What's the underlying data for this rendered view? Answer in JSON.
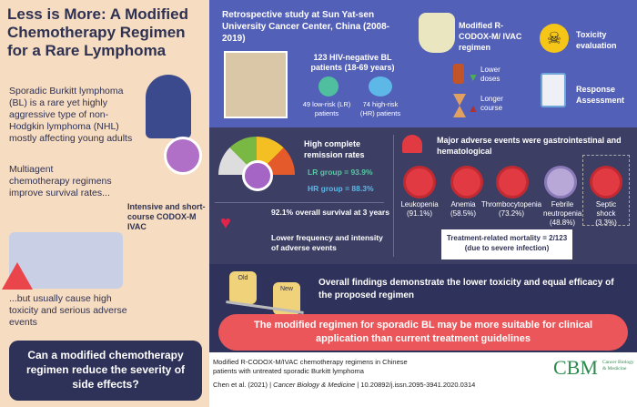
{
  "left": {
    "title": "Less is More: A Modified Chemotherapy Regimen for a Rare Lymphoma",
    "intro": "Sporadic Burkitt lymphoma (BL) is a rare yet highly aggressive type of non-Hodgkin lymphoma (NHL) mostly affecting young adults",
    "multiagent": "Multiagent chemotherapy regimens improve survival rates...",
    "regimen_label": "Intensive and short-course CODOX-M IVAC",
    "but": "...but usually cause high toxicity and serious adverse events",
    "question": "Can a modified chemotherapy regimen reduce the severity of side effects?"
  },
  "top": {
    "study": "Retrospective study at Sun Yat-sen University Cancer Center, China (2008-2019)",
    "patients": "123 HIV-negative BL patients (18-69 years)",
    "low_risk": "49 low-risk (LR) patients",
    "high_risk": "74 high-risk (HR) patients",
    "regimen": "Modified R-CODOX-M/ IVAC regimen",
    "lower_doses": "Lower doses",
    "longer_course": "Longer course",
    "toxicity": "Toxicity evaluation",
    "response": "Response Assessment"
  },
  "mid": {
    "remission_title": "High complete remission rates",
    "lr": "LR group = 93.9%",
    "hr": "HR group = 88.3%",
    "survival": "92.1% overall survival at 3 years",
    "lower_freq": "Lower frequency and intensity of adverse events",
    "adverse_title": "Major adverse events were gastrointestinal and hematological",
    "events": [
      {
        "name": "Leukopenia",
        "pct": "(91.1%)"
      },
      {
        "name": "Anemia",
        "pct": "(58.5%)"
      },
      {
        "name": "Thrombocytopenia",
        "pct": "(73.2%)"
      },
      {
        "name": "Febrile neutropenia",
        "pct": "(48.8%)"
      },
      {
        "name": "Septic shock",
        "pct": "(3.3%)"
      }
    ],
    "mortality": "Treatment-related mortality = 2/123 (due to severe infection)"
  },
  "bot": {
    "old": "Old",
    "new": "New",
    "findings": "Overall findings demonstrate the lower toxicity and equal efficacy of the proposed regimen",
    "banner": "The modified regimen for sporadic BL may be more suitable for clinical application than current treatment guidelines"
  },
  "foot": {
    "title": "Modified R-CODOX-M/IVAC chemotherapy regimens in Chinese patients with untreated sporadic Burkitt lymphoma",
    "authors": "Chen et al. (2021)",
    "journal": "Cancer Biology & Medicine",
    "doi": "10.20892/j.issn.2095-3941.2020.0314",
    "logo": "CBM",
    "logo_text": "Cancer Biology & Medicine"
  }
}
